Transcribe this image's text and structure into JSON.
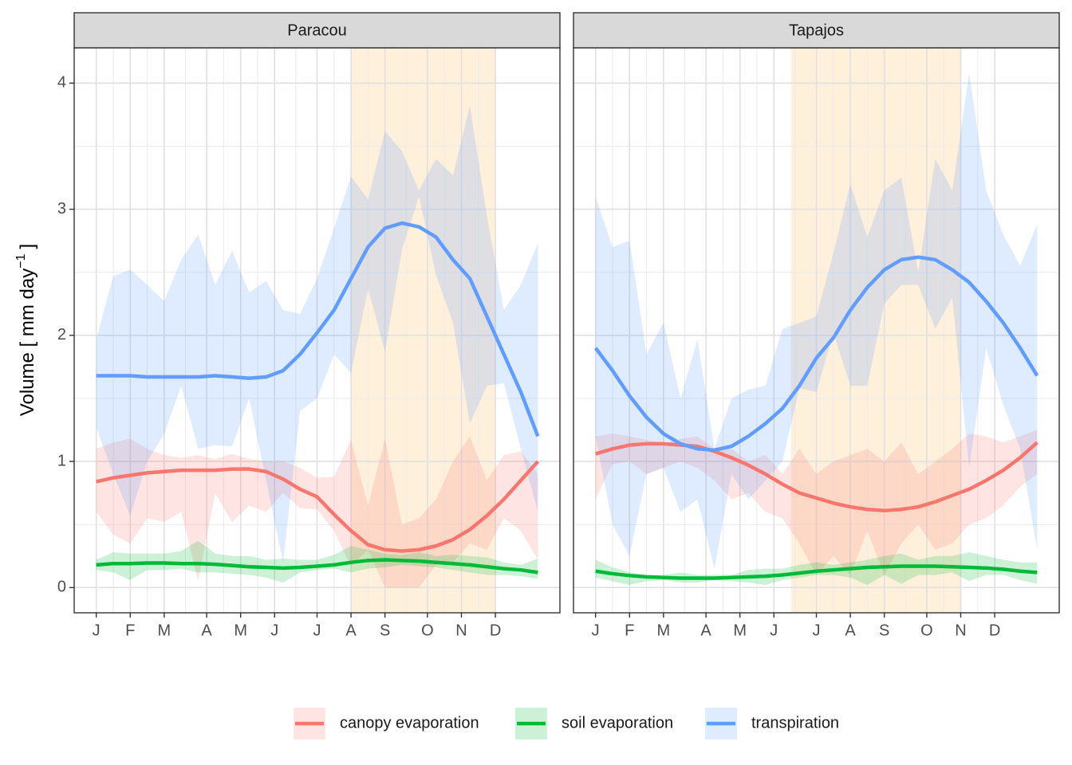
{
  "chart_data": [
    {
      "type": "line",
      "title": "Paracou",
      "x": [
        1,
        3,
        5,
        7,
        9,
        11,
        13,
        15,
        17,
        19,
        21,
        23,
        25,
        27,
        29,
        31,
        33,
        35,
        37,
        39,
        41,
        43,
        45,
        47,
        49,
        51,
        53
      ],
      "xlim": [
        -1.6,
        55.6
      ],
      "xticks": [
        {
          "value": 1,
          "label": "J"
        },
        {
          "value": 5,
          "label": "F"
        },
        {
          "value": 9,
          "label": "M"
        },
        {
          "value": 14,
          "label": "A"
        },
        {
          "value": 18,
          "label": "M"
        },
        {
          "value": 22,
          "label": "J"
        },
        {
          "value": 27,
          "label": "J"
        },
        {
          "value": 31,
          "label": "A"
        },
        {
          "value": 35,
          "label": "S"
        },
        {
          "value": 40,
          "label": "O"
        },
        {
          "value": 44,
          "label": "N"
        },
        {
          "value": 48,
          "label": "D"
        }
      ],
      "ylim": [
        -0.2,
        4.28
      ],
      "yticks": [
        0,
        1,
        2,
        3,
        4
      ],
      "grid": true,
      "shade": [
        31,
        48
      ],
      "shade_color": "#fff0dc",
      "ylabel": {
        "text": "Volume [ mm day",
        "sup": "−1",
        "end": "]"
      },
      "series": [
        {
          "name": "canopy evaporation",
          "color": "#F8766D",
          "upper": [
            1.1,
            1.15,
            1.18,
            1.1,
            1.05,
            1.03,
            1.05,
            1.02,
            1.06,
            1.02,
            1.0,
            1.0,
            0.95,
            0.87,
            0.88,
            1.17,
            0.65,
            1.18,
            0.5,
            0.55,
            0.7,
            1.0,
            1.2,
            0.85,
            1.05,
            1.08,
            0.9
          ],
          "lower": [
            0.6,
            0.42,
            0.35,
            0.55,
            0.52,
            0.6,
            0.05,
            0.75,
            0.52,
            0.65,
            0.6,
            0.75,
            0.63,
            0.62,
            0.45,
            0.17,
            0.3,
            0.0,
            0.0,
            0.0,
            0.18,
            0.2,
            0.35,
            0.3,
            0.55,
            0.45,
            0.22
          ],
          "values": [
            0.84,
            0.87,
            0.89,
            0.91,
            0.92,
            0.93,
            0.93,
            0.93,
            0.94,
            0.94,
            0.92,
            0.86,
            0.78,
            0.72,
            0.58,
            0.45,
            0.34,
            0.3,
            0.29,
            0.3,
            0.33,
            0.38,
            0.46,
            0.57,
            0.7,
            0.85,
            1.0
          ]
        },
        {
          "name": "soil evaporation",
          "color": "#00BA38",
          "upper": [
            0.22,
            0.28,
            0.27,
            0.27,
            0.27,
            0.29,
            0.37,
            0.27,
            0.25,
            0.25,
            0.22,
            0.23,
            0.22,
            0.22,
            0.26,
            0.33,
            0.3,
            0.27,
            0.26,
            0.28,
            0.25,
            0.26,
            0.25,
            0.24,
            0.2,
            0.18,
            0.23
          ],
          "lower": [
            0.14,
            0.12,
            0.06,
            0.14,
            0.14,
            0.15,
            0.12,
            0.12,
            0.11,
            0.1,
            0.08,
            0.04,
            0.12,
            0.14,
            0.15,
            0.12,
            0.15,
            0.16,
            0.18,
            0.17,
            0.16,
            0.14,
            0.12,
            0.1,
            0.1,
            0.09,
            0.07
          ],
          "values": [
            0.18,
            0.19,
            0.19,
            0.195,
            0.195,
            0.19,
            0.19,
            0.185,
            0.175,
            0.165,
            0.16,
            0.155,
            0.16,
            0.17,
            0.18,
            0.2,
            0.215,
            0.22,
            0.215,
            0.21,
            0.2,
            0.19,
            0.18,
            0.165,
            0.15,
            0.14,
            0.12
          ]
        },
        {
          "name": "transpiration",
          "color": "#619CFF",
          "upper": [
            1.97,
            2.47,
            2.52,
            2.4,
            2.27,
            2.6,
            2.8,
            2.4,
            2.67,
            2.34,
            2.43,
            2.2,
            2.17,
            2.45,
            2.85,
            3.26,
            3.08,
            3.62,
            3.46,
            3.15,
            3.4,
            3.27,
            3.82,
            2.95,
            2.2,
            2.4,
            2.73
          ],
          "lower": [
            1.27,
            0.9,
            0.57,
            1.0,
            1.22,
            1.6,
            1.1,
            1.13,
            1.12,
            1.5,
            0.85,
            0.2,
            1.4,
            1.5,
            1.85,
            1.7,
            2.37,
            1.87,
            2.68,
            3.1,
            2.48,
            2.1,
            1.3,
            1.6,
            1.62,
            1.1,
            0.6
          ],
          "values": [
            1.68,
            1.68,
            1.68,
            1.67,
            1.67,
            1.67,
            1.67,
            1.68,
            1.67,
            1.66,
            1.67,
            1.72,
            1.85,
            2.02,
            2.2,
            2.45,
            2.7,
            2.85,
            2.89,
            2.86,
            2.78,
            2.6,
            2.45,
            2.15,
            1.85,
            1.55,
            1.2
          ]
        }
      ]
    },
    {
      "type": "line",
      "title": "Tapajos",
      "x": [
        1,
        3,
        5,
        7,
        9,
        11,
        13,
        15,
        17,
        19,
        21,
        23,
        25,
        27,
        29,
        31,
        33,
        35,
        37,
        39,
        41,
        43,
        45,
        47,
        49,
        51,
        53
      ],
      "xlim": [
        -1.6,
        55.6
      ],
      "xticks": [
        {
          "value": 1,
          "label": "J"
        },
        {
          "value": 5,
          "label": "F"
        },
        {
          "value": 9,
          "label": "M"
        },
        {
          "value": 14,
          "label": "A"
        },
        {
          "value": 18,
          "label": "M"
        },
        {
          "value": 22,
          "label": "J"
        },
        {
          "value": 27,
          "label": "J"
        },
        {
          "value": 31,
          "label": "A"
        },
        {
          "value": 35,
          "label": "S"
        },
        {
          "value": 40,
          "label": "O"
        },
        {
          "value": 44,
          "label": "N"
        },
        {
          "value": 48,
          "label": "D"
        }
      ],
      "ylim": [
        -0.2,
        4.28
      ],
      "yticks": [
        0,
        1,
        2,
        3,
        4
      ],
      "grid": true,
      "shade": [
        24,
        44
      ],
      "shade_color": "#fff0dc",
      "series": [
        {
          "name": "canopy evaporation",
          "color": "#F8766D",
          "upper": [
            1.2,
            1.22,
            1.2,
            1.17,
            1.14,
            1.18,
            1.2,
            1.1,
            1.1,
            1.0,
            1.05,
            0.9,
            1.1,
            0.9,
            1.0,
            1.05,
            1.1,
            1.0,
            1.15,
            0.9,
            1.0,
            1.1,
            1.22,
            1.2,
            1.15,
            1.2,
            1.25
          ],
          "lower": [
            0.7,
            0.98,
            1.0,
            0.9,
            0.95,
            1.0,
            0.95,
            0.85,
            0.7,
            0.75,
            0.6,
            0.55,
            0.35,
            0.1,
            0.25,
            0.1,
            0.45,
            0.1,
            0.35,
            0.5,
            0.3,
            0.35,
            0.5,
            0.55,
            0.65,
            0.8,
            0.9
          ],
          "values": [
            1.06,
            1.1,
            1.13,
            1.14,
            1.14,
            1.13,
            1.12,
            1.08,
            1.03,
            0.97,
            0.9,
            0.82,
            0.75,
            0.71,
            0.67,
            0.64,
            0.62,
            0.61,
            0.62,
            0.64,
            0.68,
            0.73,
            0.78,
            0.85,
            0.93,
            1.03,
            1.15
          ]
        },
        {
          "name": "soil evaporation",
          "color": "#00BA38",
          "upper": [
            0.22,
            0.16,
            0.12,
            0.1,
            0.1,
            0.12,
            0.1,
            0.1,
            0.1,
            0.14,
            0.15,
            0.15,
            0.18,
            0.2,
            0.18,
            0.2,
            0.22,
            0.25,
            0.27,
            0.22,
            0.25,
            0.25,
            0.28,
            0.25,
            0.22,
            0.2,
            0.2
          ],
          "lower": [
            0.08,
            0.05,
            0.02,
            0.05,
            0.06,
            0.04,
            0.04,
            0.06,
            0.05,
            0.04,
            0.02,
            0.06,
            0.08,
            0.1,
            0.1,
            0.08,
            0.02,
            0.1,
            0.03,
            0.1,
            0.1,
            0.12,
            0.05,
            0.1,
            0.1,
            0.06,
            0.03
          ],
          "values": [
            0.13,
            0.11,
            0.095,
            0.085,
            0.08,
            0.075,
            0.075,
            0.075,
            0.08,
            0.085,
            0.09,
            0.1,
            0.115,
            0.13,
            0.14,
            0.15,
            0.16,
            0.165,
            0.17,
            0.17,
            0.17,
            0.165,
            0.16,
            0.155,
            0.145,
            0.13,
            0.12
          ]
        },
        {
          "name": "transpiration",
          "color": "#619CFF",
          "upper": [
            3.1,
            2.7,
            2.75,
            1.85,
            2.1,
            1.5,
            1.97,
            1.1,
            1.5,
            1.57,
            1.6,
            2.05,
            2.1,
            2.15,
            2.65,
            3.2,
            2.78,
            3.15,
            3.25,
            2.5,
            3.4,
            3.15,
            4.08,
            3.15,
            2.8,
            2.55,
            2.88
          ],
          "lower": [
            1.2,
            0.5,
            0.25,
            0.9,
            0.95,
            0.6,
            0.7,
            0.15,
            0.9,
            0.7,
            0.85,
            1.0,
            1.58,
            1.55,
            2.02,
            1.6,
            1.6,
            2.25,
            2.4,
            2.4,
            2.05,
            2.3,
            0.95,
            1.9,
            1.45,
            1.1,
            0.3
          ],
          "values": [
            1.9,
            1.72,
            1.52,
            1.35,
            1.22,
            1.14,
            1.1,
            1.09,
            1.12,
            1.2,
            1.3,
            1.42,
            1.6,
            1.82,
            1.98,
            2.2,
            2.38,
            2.52,
            2.6,
            2.62,
            2.6,
            2.52,
            2.42,
            2.27,
            2.1,
            1.9,
            1.68
          ]
        }
      ]
    }
  ]
}
